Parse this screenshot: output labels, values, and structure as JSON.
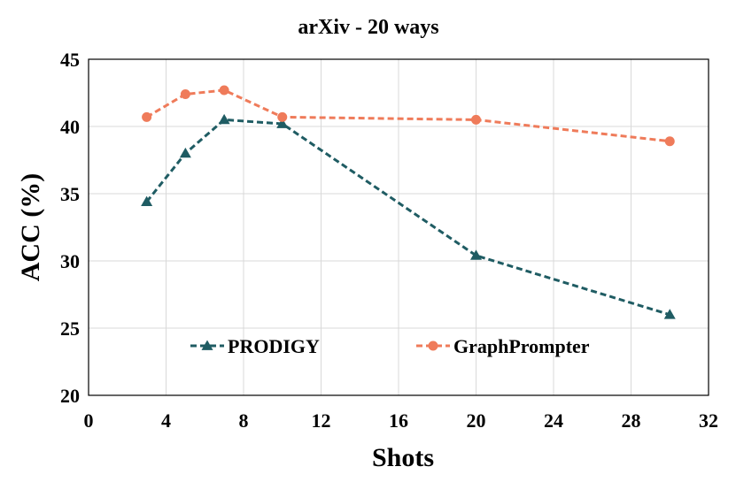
{
  "chart_data": {
    "type": "line",
    "title": "arXiv - 20 ways",
    "xlabel": "Shots",
    "ylabel": "ACC (%)",
    "xlim": [
      0,
      32
    ],
    "ylim": [
      20,
      45
    ],
    "xticks": [
      0,
      4,
      8,
      12,
      16,
      20,
      24,
      28,
      32
    ],
    "yticks": [
      20,
      25,
      30,
      35,
      40,
      45
    ],
    "grid": true,
    "legend_position": "inside-bottom",
    "series": [
      {
        "name": "PRODIGY",
        "marker": "triangle",
        "line_style": "dashed",
        "color": "#1f5c63",
        "x": [
          3,
          5,
          7,
          10,
          20,
          30
        ],
        "y": [
          34.4,
          38.0,
          40.5,
          40.2,
          30.4,
          26.0
        ]
      },
      {
        "name": "GraphPrompter",
        "marker": "circle",
        "line_style": "dashed",
        "color": "#ef7b5a",
        "x": [
          3,
          5,
          7,
          10,
          20,
          30
        ],
        "y": [
          40.7,
          42.4,
          42.7,
          40.7,
          40.5,
          38.9
        ]
      }
    ]
  }
}
